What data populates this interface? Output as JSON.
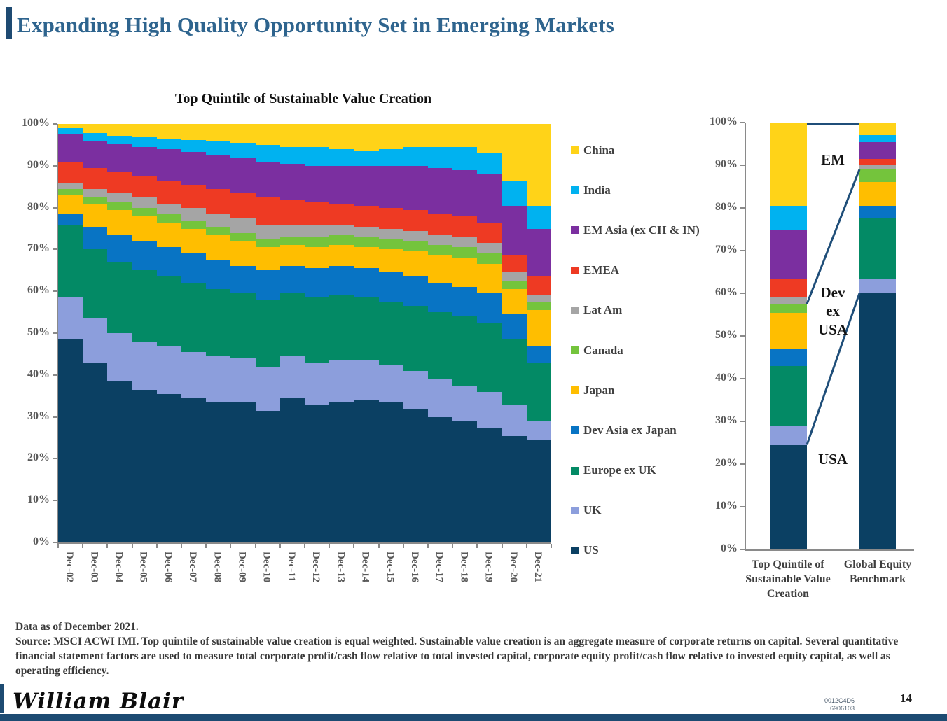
{
  "slide": {
    "title": "Expanding High Quality Opportunity Set in Emerging Markets",
    "footnote_line1": "Data as of December 2021.",
    "footnote_source": "Source: MSCI ACWI IMI. Top quintile of sustainable value creation is equal weighted. Sustainable value creation is an aggregate measure of corporate returns on capital. Several quantitative financial statement factors are used to measure total corporate profit/cash flow relative to total invested capital,  corporate equity profit/cash flow relative to invested equity capital, as well as operating efficiency.",
    "logo_text": "William Blair",
    "doc_code_line1": "0012C4D6",
    "doc_code_line2": "6906103",
    "page_number": "14"
  },
  "colors": {
    "accent_navy": "#1e4a72",
    "title_blue": "#2e648e",
    "axis_gray": "#8a8a8a",
    "connector_line": "#1f4e79"
  },
  "legend": {
    "items": [
      {
        "label": "China",
        "color": "#ffd318"
      },
      {
        "label": "India",
        "color": "#00b2f0"
      },
      {
        "label": "EM Asia (ex CH & IN)",
        "color": "#7b2fa0"
      },
      {
        "label": "EMEA",
        "color": "#ee3a23"
      },
      {
        "label": "Lat Am",
        "color": "#a5a5a5"
      },
      {
        "label": "Canada",
        "color": "#74c43c"
      },
      {
        "label": "Japan",
        "color": "#ffbe00"
      },
      {
        "label": "Dev Asia ex Japan",
        "color": "#0874c4"
      },
      {
        "label": "Europe ex UK",
        "color": "#038a65"
      },
      {
        "label": "UK",
        "color": "#8c9edc"
      },
      {
        "label": "US",
        "color": "#0b4063"
      }
    ]
  },
  "chart_data": [
    {
      "type": "bar",
      "stacked": true,
      "title": "Top Quintile of Sustainable Value Creation",
      "xlabel": "",
      "ylabel": "",
      "ylim": [
        0,
        100
      ],
      "grid": false,
      "legend_position": "right",
      "y_ticks": [
        "100%",
        "90%",
        "80%",
        "70%",
        "60%",
        "50%",
        "40%",
        "30%",
        "20%",
        "10%",
        "0%"
      ],
      "categories": [
        "Dec-02",
        "Dec-03",
        "Dec-04",
        "Dec-05",
        "Dec-06",
        "Dec-07",
        "Dec-08",
        "Dec-09",
        "Dec-10",
        "Dec-11",
        "Dec-12",
        "Dec-13",
        "Dec-14",
        "Dec-15",
        "Dec-16",
        "Dec-17",
        "Dec-18",
        "Dec-19",
        "Dec-20",
        "Dec-21"
      ],
      "series": [
        {
          "name": "US",
          "color": "#0b4063",
          "values": [
            48.5,
            43,
            38.5,
            36.5,
            35.5,
            34.5,
            33.5,
            33.5,
            31.5,
            34.5,
            33,
            33.5,
            34,
            33.5,
            32,
            30,
            29,
            27.5,
            25.5,
            24.5
          ]
        },
        {
          "name": "UK",
          "color": "#8c9edc",
          "values": [
            10,
            10.5,
            11.5,
            11.5,
            11.5,
            11,
            11,
            10.5,
            10.5,
            10,
            10,
            10,
            9.5,
            9,
            9,
            9,
            8.5,
            8.5,
            7.5,
            4.5
          ]
        },
        {
          "name": "Europe ex UK",
          "color": "#038a65",
          "values": [
            17.5,
            16.5,
            17,
            17,
            16.5,
            16.5,
            16,
            15.5,
            16,
            15,
            15.5,
            15.5,
            15,
            15,
            15.5,
            16,
            16.5,
            16.5,
            15.5,
            14
          ]
        },
        {
          "name": "Dev Asia ex Japan",
          "color": "#0874c4",
          "values": [
            2.5,
            5.5,
            6.5,
            7,
            7,
            7,
            7,
            6.5,
            7,
            6.5,
            7,
            7,
            7,
            7,
            7,
            7,
            7,
            7,
            6,
            4
          ]
        },
        {
          "name": "Japan",
          "color": "#ffbe00",
          "values": [
            4.5,
            5.5,
            6,
            6,
            6,
            6,
            6,
            6,
            5.5,
            5,
            5,
            5,
            5,
            5.5,
            6,
            6.5,
            7,
            7,
            6,
            8.5
          ]
        },
        {
          "name": "Canada",
          "color": "#74c43c",
          "values": [
            1.5,
            1.5,
            1.8,
            2,
            2,
            2,
            2,
            2,
            2,
            2,
            2.5,
            2.5,
            2.5,
            2.5,
            2.5,
            2.5,
            2.5,
            2.5,
            2,
            2
          ]
        },
        {
          "name": "Lat Am",
          "color": "#a5a5a5",
          "values": [
            1.5,
            2,
            2.2,
            2.5,
            2.5,
            3,
            3,
            3.5,
            3.5,
            3,
            3,
            2.5,
            2.5,
            2.5,
            2.5,
            2.5,
            2.5,
            2.5,
            2,
            1.5
          ]
        },
        {
          "name": "EMEA",
          "color": "#ee3a23",
          "values": [
            5,
            5,
            5,
            5,
            5.5,
            5.5,
            6,
            6,
            6.5,
            6,
            5.5,
            5,
            5,
            5,
            5,
            5,
            5,
            5,
            4,
            4.5
          ]
        },
        {
          "name": "EM Asia (ex CH & IN)",
          "color": "#7b2fa0",
          "values": [
            6.5,
            6.5,
            6.8,
            7,
            7.5,
            7.8,
            8,
            8.5,
            8.5,
            8.5,
            8.5,
            9,
            9.5,
            10,
            10.5,
            11,
            11,
            11.5,
            12,
            11.5
          ]
        },
        {
          "name": "India",
          "color": "#00b2f0",
          "values": [
            1.5,
            1.8,
            1.9,
            2.3,
            2.5,
            2.9,
            3.5,
            3.5,
            4,
            4,
            4.5,
            4,
            3.5,
            4,
            4.5,
            5,
            5.5,
            5,
            6,
            5.5
          ]
        },
        {
          "name": "China",
          "color": "#ffd318",
          "values": [
            1,
            2.2,
            2.8,
            3.2,
            3.5,
            3.8,
            4,
            4.5,
            5,
            5.5,
            5.5,
            6,
            6.5,
            6,
            5.5,
            5.5,
            5.5,
            7,
            13.5,
            19.5
          ]
        }
      ]
    },
    {
      "type": "bar",
      "stacked": true,
      "title": "",
      "ylim": [
        0,
        100
      ],
      "grid": false,
      "y_ticks": [
        "100%",
        "90%",
        "80%",
        "70%",
        "60%",
        "50%",
        "40%",
        "30%",
        "20%",
        "10%",
        "0%"
      ],
      "categories": [
        "Top Quintile of Sustainable Value Creation",
        "Global Equity Benchmark"
      ],
      "series": [
        {
          "name": "US",
          "color": "#0b4063",
          "values": [
            24.5,
            60
          ]
        },
        {
          "name": "UK",
          "color": "#8c9edc",
          "values": [
            4.5,
            3.5
          ]
        },
        {
          "name": "Europe ex UK",
          "color": "#038a65",
          "values": [
            14,
            14
          ]
        },
        {
          "name": "Dev Asia ex Japan",
          "color": "#0874c4",
          "values": [
            4,
            3
          ]
        },
        {
          "name": "Japan",
          "color": "#ffbe00",
          "values": [
            8.5,
            5.5
          ]
        },
        {
          "name": "Canada",
          "color": "#74c43c",
          "values": [
            2,
            3
          ]
        },
        {
          "name": "Lat Am",
          "color": "#a5a5a5",
          "values": [
            1.5,
            1
          ]
        },
        {
          "name": "EMEA",
          "color": "#ee3a23",
          "values": [
            4.5,
            1.5
          ]
        },
        {
          "name": "EM Asia (ex CH & IN)",
          "color": "#7b2fa0",
          "values": [
            11.5,
            4
          ]
        },
        {
          "name": "India",
          "color": "#00b2f0",
          "values": [
            5.5,
            1.5
          ]
        },
        {
          "name": "China",
          "color": "#ffd318",
          "values": [
            19.5,
            3
          ]
        }
      ],
      "annotations": {
        "em": "EM",
        "dev_ex_usa": "Dev ex USA",
        "usa": "USA"
      }
    }
  ]
}
